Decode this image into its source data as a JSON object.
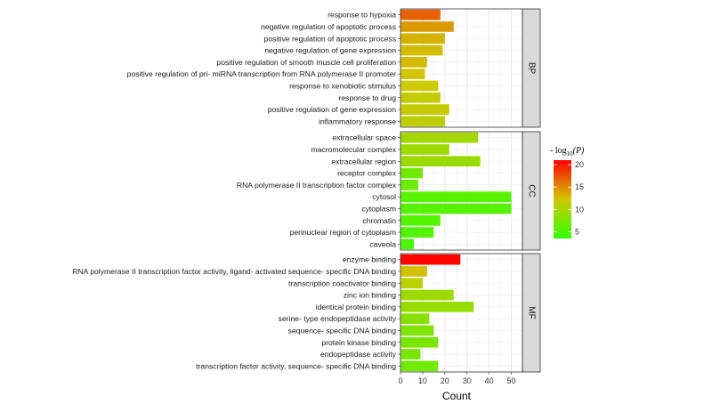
{
  "chart_data": {
    "type": "bar",
    "orientation": "horizontal",
    "xlabel": "Count",
    "ylabel": "",
    "xlim": [
      0,
      55
    ],
    "x_ticks": [
      0,
      10,
      20,
      30,
      40,
      50
    ],
    "grid": true,
    "legend": {
      "title_prefix": "- log",
      "title_subscript": "10",
      "title_suffix": "(P)",
      "placement": "right",
      "ticks": [
        5,
        10,
        15,
        20
      ],
      "range": [
        3.5,
        21
      ],
      "color_low": "#33ff00",
      "color_high": "#ff0000"
    },
    "panels": [
      {
        "strip": "BP",
        "categories": [
          "response to hypoxia",
          "negative regulation of apoptotic process",
          "positive regulation of apoptotic process",
          "negative regulation of gene expression",
          "positive regulation of smooth muscle cell proliferation",
          "positive regulation of pri- miRNA transcription from RNA polymerase II promoter",
          "response to xenobiotic stimulus",
          "response to drug",
          "positive regulation of gene expression",
          "inflammatory response"
        ],
        "values": [
          18,
          24,
          20,
          19,
          12,
          11,
          17,
          18,
          22,
          20
        ],
        "neg_log10_p": [
          16.8,
          14.2,
          13.2,
          12.8,
          12.8,
          12.4,
          12.0,
          11.6,
          11.6,
          11.2
        ]
      },
      {
        "strip": "CC",
        "categories": [
          "extracellular space",
          "macromolecular complex",
          "extracellular region",
          "receptor complex",
          "RNA polymerase II transcription factor complex",
          "cytosol",
          "cytoplasm",
          "chromatin",
          "perinuclear region of cytoplasm",
          "caveola"
        ],
        "values": [
          35,
          22,
          36,
          10,
          8,
          50,
          50,
          18,
          15,
          6
        ],
        "neg_log10_p": [
          9.8,
          9.4,
          9.2,
          7.0,
          6.6,
          5.6,
          5.5,
          5.3,
          5.3,
          4.8
        ]
      },
      {
        "strip": "MF",
        "categories": [
          "enzyme binding",
          "RNA polymerase II transcription factor activity, ligand- activated sequence- specific DNA binding",
          "transcription coactivator binding",
          "zinc ion binding",
          "identical protein binding",
          "serine- type endopeptidase activity",
          "sequence- specific DNA binding",
          "protein kinase binding",
          "endopeptidase activity",
          "transcription factor activity, sequence- specific DNA binding"
        ],
        "values": [
          27,
          12,
          10,
          24,
          33,
          13,
          15,
          17,
          9,
          17
        ],
        "neg_log10_p": [
          20.8,
          12.6,
          11.0,
          9.4,
          9.0,
          8.2,
          7.8,
          7.4,
          7.4,
          7.0
        ]
      }
    ]
  }
}
